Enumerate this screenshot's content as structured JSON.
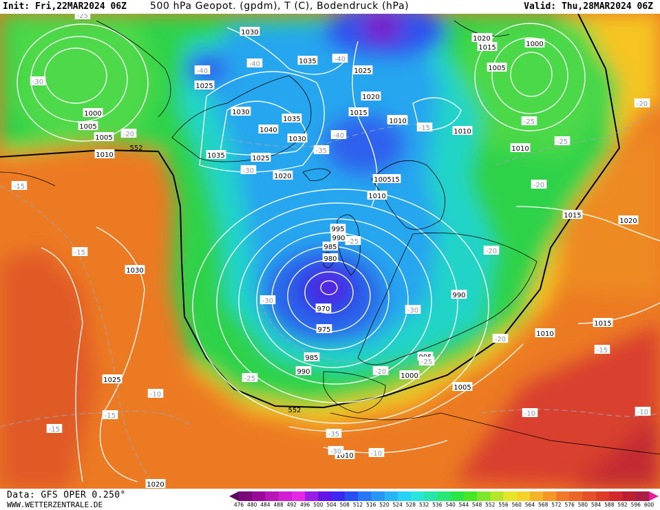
{
  "header": {
    "init": "Init: Fri,22MAR2024 06Z",
    "title": "500 hPa Geopot. (gpdm), T (C), Bodendruck (hPa)",
    "valid": "Valid: Thu,28MAR2024 06Z"
  },
  "footer": {
    "source": "Data: GFS OPER 0.250°",
    "website": "WWW.WETTERZENTRALE.DE"
  },
  "scale": {
    "labels": [
      "476",
      "480",
      "484",
      "488",
      "492",
      "496",
      "500",
      "504",
      "508",
      "512",
      "516",
      "520",
      "524",
      "528",
      "532",
      "536",
      "540",
      "544",
      "548",
      "552",
      "556",
      "560",
      "564",
      "568",
      "572",
      "576",
      "580",
      "584",
      "588",
      "592",
      "596",
      "600"
    ],
    "colors": [
      "#5c0a5c",
      "#7a0a7a",
      "#9a0a9a",
      "#b814b8",
      "#d21ed2",
      "#e628e6",
      "#9b1ee6",
      "#6414e6",
      "#3c28f0",
      "#2850f0",
      "#2878f5",
      "#2896f5",
      "#28b4f5",
      "#28d2f5",
      "#28e6dc",
      "#28e6aa",
      "#28e678",
      "#28e646",
      "#46e628",
      "#7de628",
      "#b4e628",
      "#e6e628",
      "#f5d228",
      "#f5b428",
      "#f59628",
      "#f07828",
      "#eb6428",
      "#e65028",
      "#dc3c28",
      "#d2282d",
      "#be1e32",
      "#aa1e46",
      "#e61ea0"
    ]
  },
  "map": {
    "pressure_labels": [
      "1030",
      "1035",
      "1025",
      "1030",
      "1035",
      "1040",
      "1030",
      "1035",
      "1025",
      "1020",
      "1025",
      "1020",
      "1015",
      "1010",
      "1020",
      "1015",
      "1000",
      "1005",
      "1010",
      "1010",
      "1000",
      "1005",
      "1005",
      "1010",
      "1015",
      "1030",
      "1025",
      "995",
      "990",
      "985",
      "980",
      "970",
      "975",
      "985",
      "990",
      "990",
      "995",
      "1000",
      "1005",
      "1010",
      "1015",
      "1015",
      "1020",
      "1020",
      "1005",
      "1010",
      "1010",
      "1020",
      "1010"
    ],
    "temperature_labels": [
      "-25",
      "-30",
      "-20",
      "-15",
      "-40",
      "-40",
      "-40",
      "-35",
      "-40",
      "-30",
      "-25",
      "-20",
      "-20",
      "-15",
      "-30",
      "-25",
      "-20",
      "-30",
      "-20",
      "-20",
      "-25",
      "-15",
      "-15",
      "-10",
      "-15",
      "-15",
      "-10",
      "-10",
      "-10",
      "-30",
      "-35",
      "-25",
      "-25"
    ],
    "geopotential_labels": [
      "552",
      "552"
    ]
  }
}
